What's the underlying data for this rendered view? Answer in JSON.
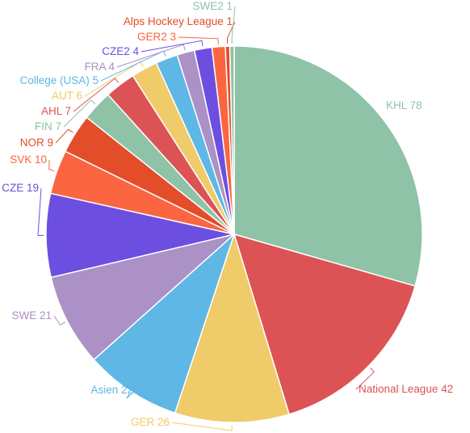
{
  "chart_data": {
    "type": "pie",
    "title": "",
    "start_angle_deg": 0,
    "direction": "clockwise",
    "slices": [
      {
        "label": "KHL",
        "value": 78,
        "color": "#8ec3a7"
      },
      {
        "label": "National League",
        "value": 42,
        "color": "#dc5356"
      },
      {
        "label": "GER",
        "value": 26,
        "color": "#f0cb69"
      },
      {
        "label": "Asien",
        "value": 22,
        "color": "#5fb7e5"
      },
      {
        "label": "SWE",
        "value": 21,
        "color": "#ab91c5"
      },
      {
        "label": "CZE",
        "value": 19,
        "color": "#6c4fe0"
      },
      {
        "label": "SVK",
        "value": 10,
        "color": "#fb6540"
      },
      {
        "label": "NOR",
        "value": 9,
        "color": "#e34d2a"
      },
      {
        "label": "FIN",
        "value": 7,
        "color": "#8ec3a7"
      },
      {
        "label": "AHL",
        "value": 7,
        "color": "#dc5356"
      },
      {
        "label": "AUT",
        "value": 6,
        "color": "#f0cb69"
      },
      {
        "label": "College (USA)",
        "value": 5,
        "color": "#5fb7e5"
      },
      {
        "label": "FRA",
        "value": 4,
        "color": "#ab91c5"
      },
      {
        "label": "CZE2",
        "value": 4,
        "color": "#6c4fe0"
      },
      {
        "label": "GER2",
        "value": 3,
        "color": "#fb6540"
      },
      {
        "label": "Alps Hockey League",
        "value": 1,
        "color": "#e34d2a"
      },
      {
        "label": "SWE2",
        "value": 1,
        "color": "#8ec3a7"
      }
    ]
  }
}
